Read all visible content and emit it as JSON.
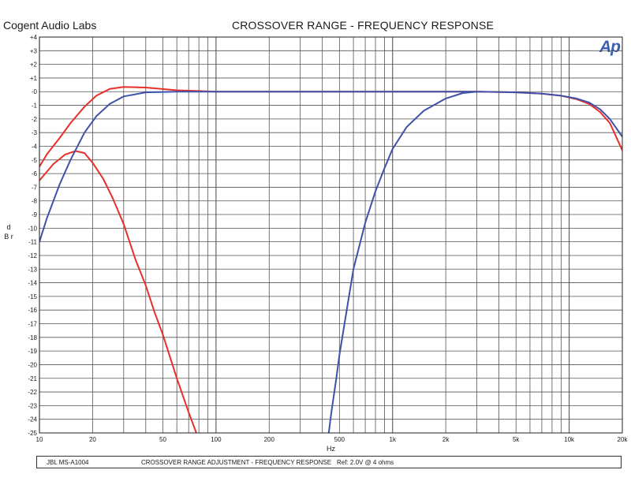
{
  "header": {
    "brand": "Cogent Audio Labs",
    "title": "CROSSOVER  RANGE  -  FREQUENCY RESPONSE",
    "logo": "Ap"
  },
  "footer": {
    "model": "JBL  MS-A1004",
    "description": "CROSSOVER  RANGE ADJUSTMENT  -  FREQUENCY RESPONSE",
    "reference": "Ref: 2.0V @ 4 ohms"
  },
  "chart_data": {
    "type": "line",
    "title": "CROSSOVER  RANGE  -  FREQUENCY RESPONSE",
    "xlabel": "Hz",
    "ylabel": "d B r",
    "xscale": "log",
    "xlim": [
      10,
      20000
    ],
    "ylim": [
      -25,
      4
    ],
    "grid": true,
    "xticks": [
      10,
      20,
      50,
      100,
      200,
      500,
      1000,
      2000,
      5000,
      10000,
      20000
    ],
    "xtick_labels": [
      "10",
      "20",
      "50",
      "100",
      "200",
      "500",
      "1k",
      "2k",
      "5k",
      "10k",
      "20k"
    ],
    "yticks": [
      4,
      3,
      2,
      1,
      0,
      -1,
      -2,
      -3,
      -4,
      -5,
      -6,
      -7,
      -8,
      -9,
      -10,
      -11,
      -12,
      -13,
      -14,
      -15,
      -16,
      -17,
      -18,
      -19,
      -20,
      -21,
      -22,
      -23,
      -24,
      -25
    ],
    "ytick_labels": [
      "+4",
      "+3",
      "+2",
      "+1",
      "-0",
      "-1",
      "-2",
      "-3",
      "-4",
      "-5",
      "-6",
      "-7",
      "-8",
      "-9",
      "-10",
      "-11",
      "-12",
      "-13",
      "-14",
      "-15",
      "-16",
      "-17",
      "-18",
      "-19",
      "-20",
      "-21",
      "-22",
      "-23",
      "-24",
      "-25"
    ],
    "series": [
      {
        "color": "#e8302a",
        "x": [
          10,
          11,
          13,
          15,
          18,
          21,
          25,
          30,
          40,
          60,
          100,
          200,
          500,
          1000,
          3000,
          5000,
          7000,
          9000,
          11000,
          13000,
          15000,
          17000,
          20000
        ],
        "y": [
          -5.5,
          -4.6,
          -3.4,
          -2.3,
          -1.1,
          -0.3,
          0.2,
          0.35,
          0.3,
          0.1,
          0.0,
          0.0,
          0.0,
          0.0,
          0.0,
          -0.05,
          -0.15,
          -0.3,
          -0.55,
          -0.9,
          -1.5,
          -2.3,
          -4.3
        ]
      },
      {
        "color": "#e8302a",
        "x": [
          10,
          12,
          14,
          16,
          18,
          20,
          23,
          26,
          30,
          35,
          40,
          45,
          50,
          60,
          70,
          80
        ],
        "y": [
          -6.5,
          -5.3,
          -4.6,
          -4.35,
          -4.5,
          -5.2,
          -6.4,
          -7.8,
          -9.7,
          -12.3,
          -14.2,
          -16.2,
          -17.8,
          -21.0,
          -23.5,
          -25.5
        ]
      },
      {
        "color": "#3d52a8",
        "x": [
          10,
          11,
          13,
          15,
          18,
          21,
          25,
          30,
          40,
          60,
          100,
          200,
          500,
          1000,
          3000,
          5000,
          7000,
          9000,
          11000,
          13000,
          15000,
          17000,
          20000
        ],
        "y": [
          -11.0,
          -9.3,
          -6.8,
          -5.0,
          -3.0,
          -1.8,
          -0.9,
          -0.35,
          -0.05,
          0.0,
          0.0,
          0.0,
          0.0,
          0.0,
          0.0,
          -0.05,
          -0.15,
          -0.3,
          -0.5,
          -0.8,
          -1.3,
          -2.0,
          -3.3
        ]
      },
      {
        "color": "#3d52a8",
        "x": [
          430,
          450,
          480,
          500,
          550,
          600,
          700,
          800,
          900,
          1000,
          1200,
          1500,
          2000,
          2500,
          3000
        ],
        "y": [
          -25.5,
          -23.5,
          -21.0,
          -19.3,
          -16.0,
          -13.0,
          -9.6,
          -7.3,
          -5.6,
          -4.2,
          -2.6,
          -1.4,
          -0.5,
          -0.1,
          0.0
        ]
      }
    ]
  }
}
